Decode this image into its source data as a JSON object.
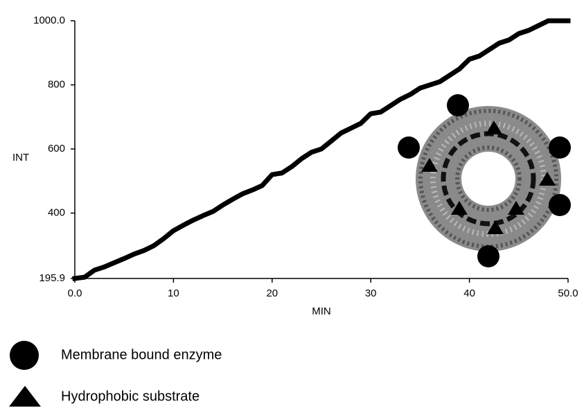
{
  "chart_data": {
    "type": "line",
    "x_label": "MIN",
    "y_label": "INT",
    "x": [
      0,
      1,
      2,
      3,
      4,
      5,
      6,
      7,
      8,
      9,
      10,
      11,
      12,
      13,
      14,
      15,
      16,
      17,
      18,
      19,
      20,
      21,
      22,
      23,
      24,
      25,
      26,
      27,
      28,
      29,
      30,
      31,
      32,
      33,
      34,
      35,
      36,
      37,
      38,
      39,
      40,
      41,
      42,
      43,
      44,
      45,
      46,
      47,
      48,
      49,
      50
    ],
    "series": [
      {
        "color": "#000000",
        "values": [
          196,
          200,
          222,
          232,
          245,
          258,
          272,
          283,
          298,
          320,
          345,
          362,
          378,
          392,
          405,
          425,
          443,
          460,
          472,
          486,
          520,
          525,
          545,
          570,
          590,
          600,
          625,
          650,
          665,
          680,
          710,
          715,
          735,
          755,
          770,
          790,
          800,
          810,
          830,
          850,
          880,
          890,
          910,
          930,
          940,
          960,
          970,
          985,
          1000,
          1000,
          1000
        ]
      }
    ],
    "xlim": [
      0,
      50
    ],
    "ylim": [
      195.9,
      1000
    ],
    "xticks": [
      {
        "value": 0,
        "label": "0.0"
      },
      10,
      20,
      30,
      40,
      {
        "value": 50,
        "label": "50.0"
      }
    ],
    "yticks": [
      195.9,
      400,
      600,
      800,
      {
        "value": 1000,
        "label": "1000.0"
      }
    ],
    "grid": false
  },
  "legend": [
    "Membrane bound enzyme",
    "Hydrophobic substrate"
  ]
}
